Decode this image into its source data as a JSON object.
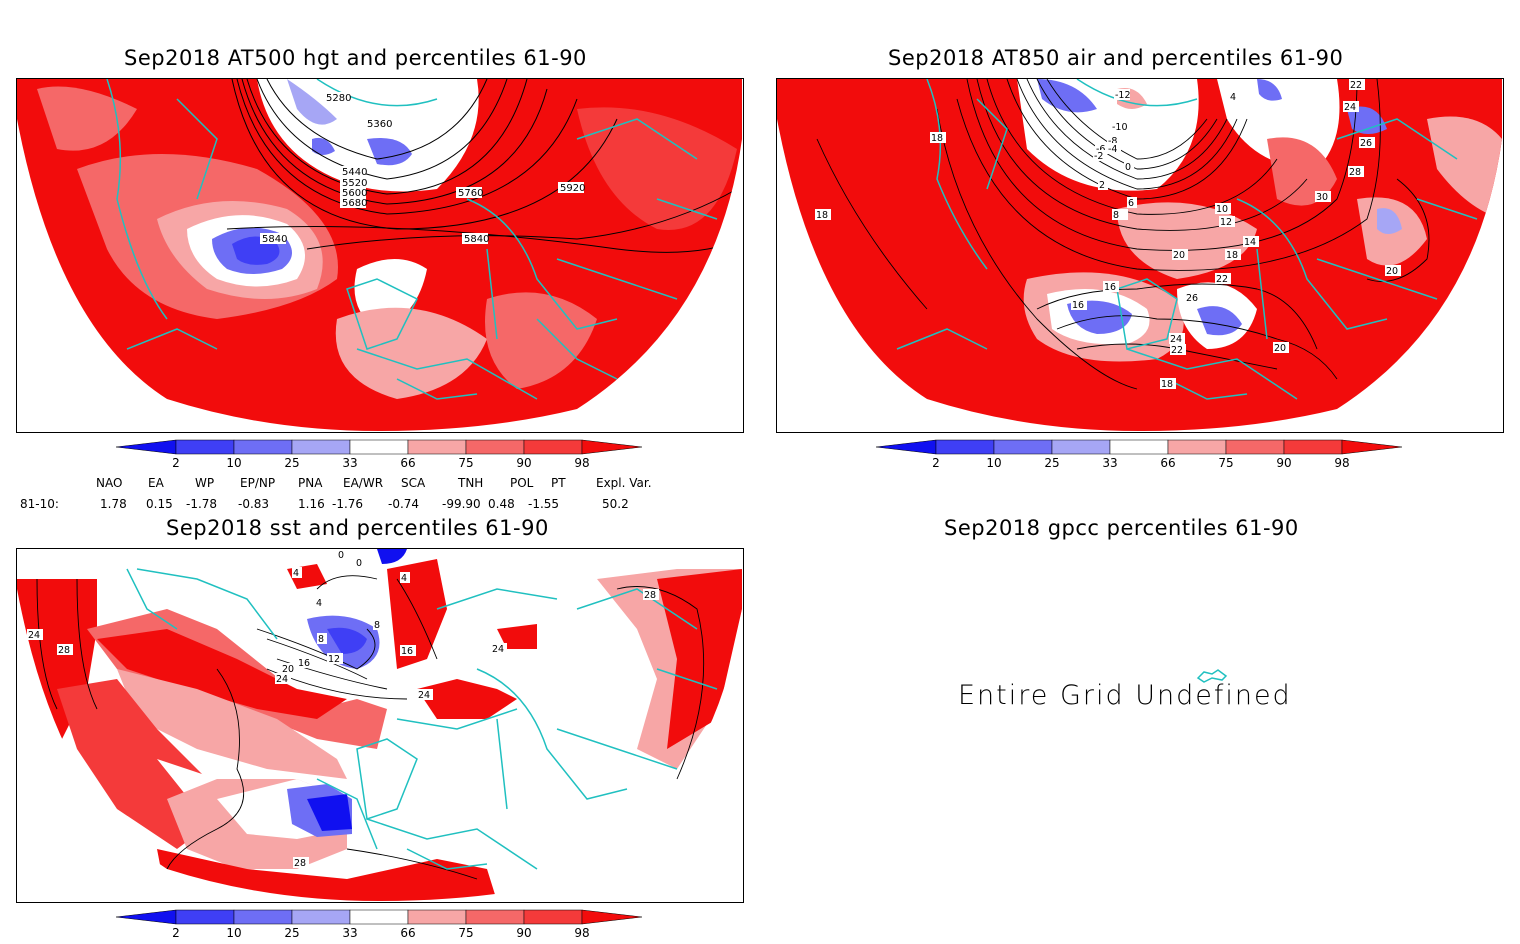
{
  "panels": {
    "hgt": {
      "title": "Sep2018 AT500 hgt and percentiles 61-90",
      "contours": [
        "5280",
        "5360",
        "5440",
        "5520",
        "5600",
        "5680",
        "5760",
        "5840",
        "5840",
        "5920"
      ]
    },
    "air": {
      "title": "Sep2018 AT850 air and percentiles 61-90",
      "contours": [
        "-12",
        "-10",
        "-8",
        "-6",
        "-4",
        "-2",
        "0",
        "2",
        "4",
        "6",
        "8",
        "10",
        "12",
        "14",
        "16",
        "16",
        "18",
        "18",
        "18",
        "18",
        "20",
        "20",
        "20",
        "22",
        "22",
        "22",
        "24",
        "24",
        "26",
        "26",
        "28",
        "30"
      ]
    },
    "sst": {
      "title": "Sep2018 sst and percentiles 61-90",
      "contours": [
        "0",
        "0",
        "4",
        "4",
        "4",
        "8",
        "8",
        "12",
        "16",
        "16",
        "20",
        "24",
        "24",
        "24",
        "28",
        "28",
        "28",
        "24"
      ]
    },
    "gpcc": {
      "title": "Sep2018 gpcc percentiles 61-90",
      "message": "Entire Grid Undefined"
    }
  },
  "colorbar": {
    "labels": [
      "2",
      "10",
      "25",
      "33",
      "66",
      "75",
      "90",
      "98"
    ],
    "colors": [
      "#1010f0",
      "#3f3ff5",
      "#6e6ef5",
      "#a6a6f5",
      "#ffffff",
      "#f7a6a6",
      "#f56868",
      "#f43a3a",
      "#f20c0c"
    ]
  },
  "teleconnections": {
    "row_label": "81-10:",
    "headers": [
      "NAO",
      "EA",
      "WP",
      "EP/NP",
      "PNA",
      "EA/WR",
      "SCA",
      "TNH",
      "POL",
      "PT",
      "Expl. Var."
    ],
    "values": [
      "1.78",
      "0.15",
      "-1.78",
      "-0.83",
      "1.16",
      "-1.76",
      "-0.74",
      "-99.90",
      "0.48",
      "-1.55",
      "50.2"
    ]
  }
}
